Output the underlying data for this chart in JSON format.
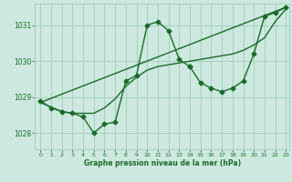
{
  "title": "Graphe pression niveau de la mer (hPa)",
  "bg_color": "#cde8df",
  "grid_color": "#a8cfc0",
  "line_color": "#1a6b2a",
  "x_min": -0.5,
  "x_max": 23.3,
  "y_min": 1027.55,
  "y_max": 1031.6,
  "yticks": [
    1028,
    1029,
    1030,
    1031
  ],
  "xticks": [
    0,
    1,
    2,
    3,
    4,
    5,
    6,
    7,
    8,
    9,
    10,
    11,
    12,
    13,
    14,
    15,
    16,
    17,
    18,
    19,
    20,
    21,
    22,
    23
  ],
  "series_main": {
    "x": [
      0,
      1,
      2,
      3,
      4,
      5,
      6,
      7,
      8,
      9,
      10,
      11,
      12,
      13,
      14
    ],
    "y": [
      1028.9,
      1028.7,
      1028.6,
      1028.55,
      1028.45,
      1028.0,
      1028.25,
      1028.3,
      1029.45,
      1029.6,
      1031.0,
      1031.1,
      1030.85,
      1030.05,
      1029.85
    ],
    "marker": "D",
    "markersize": 2.5,
    "linewidth": 1.0
  },
  "series_secondary": {
    "x": [
      14,
      15,
      16,
      17,
      18,
      19,
      20,
      21,
      22,
      23
    ],
    "y": [
      1029.85,
      1029.4,
      1029.25,
      1029.15,
      1029.25,
      1029.45,
      1030.2,
      1031.25,
      1031.35,
      1031.5
    ],
    "marker": "D",
    "markersize": 2.5,
    "linewidth": 1.0
  },
  "series_smooth": {
    "x": [
      0,
      2,
      3,
      5,
      6,
      7,
      8,
      9,
      10,
      11,
      12,
      13,
      14,
      15,
      16,
      17,
      18,
      19,
      20,
      21,
      22,
      23
    ],
    "y": [
      1028.85,
      1028.6,
      1028.55,
      1028.55,
      1028.7,
      1028.95,
      1029.3,
      1029.55,
      1029.75,
      1029.85,
      1029.9,
      1029.95,
      1030.0,
      1030.05,
      1030.1,
      1030.15,
      1030.2,
      1030.3,
      1030.45,
      1030.65,
      1031.1,
      1031.45
    ],
    "linewidth": 1.0
  },
  "series_linear": {
    "x": [
      0,
      23
    ],
    "y": [
      1028.85,
      1031.5
    ],
    "linewidth": 1.0
  }
}
